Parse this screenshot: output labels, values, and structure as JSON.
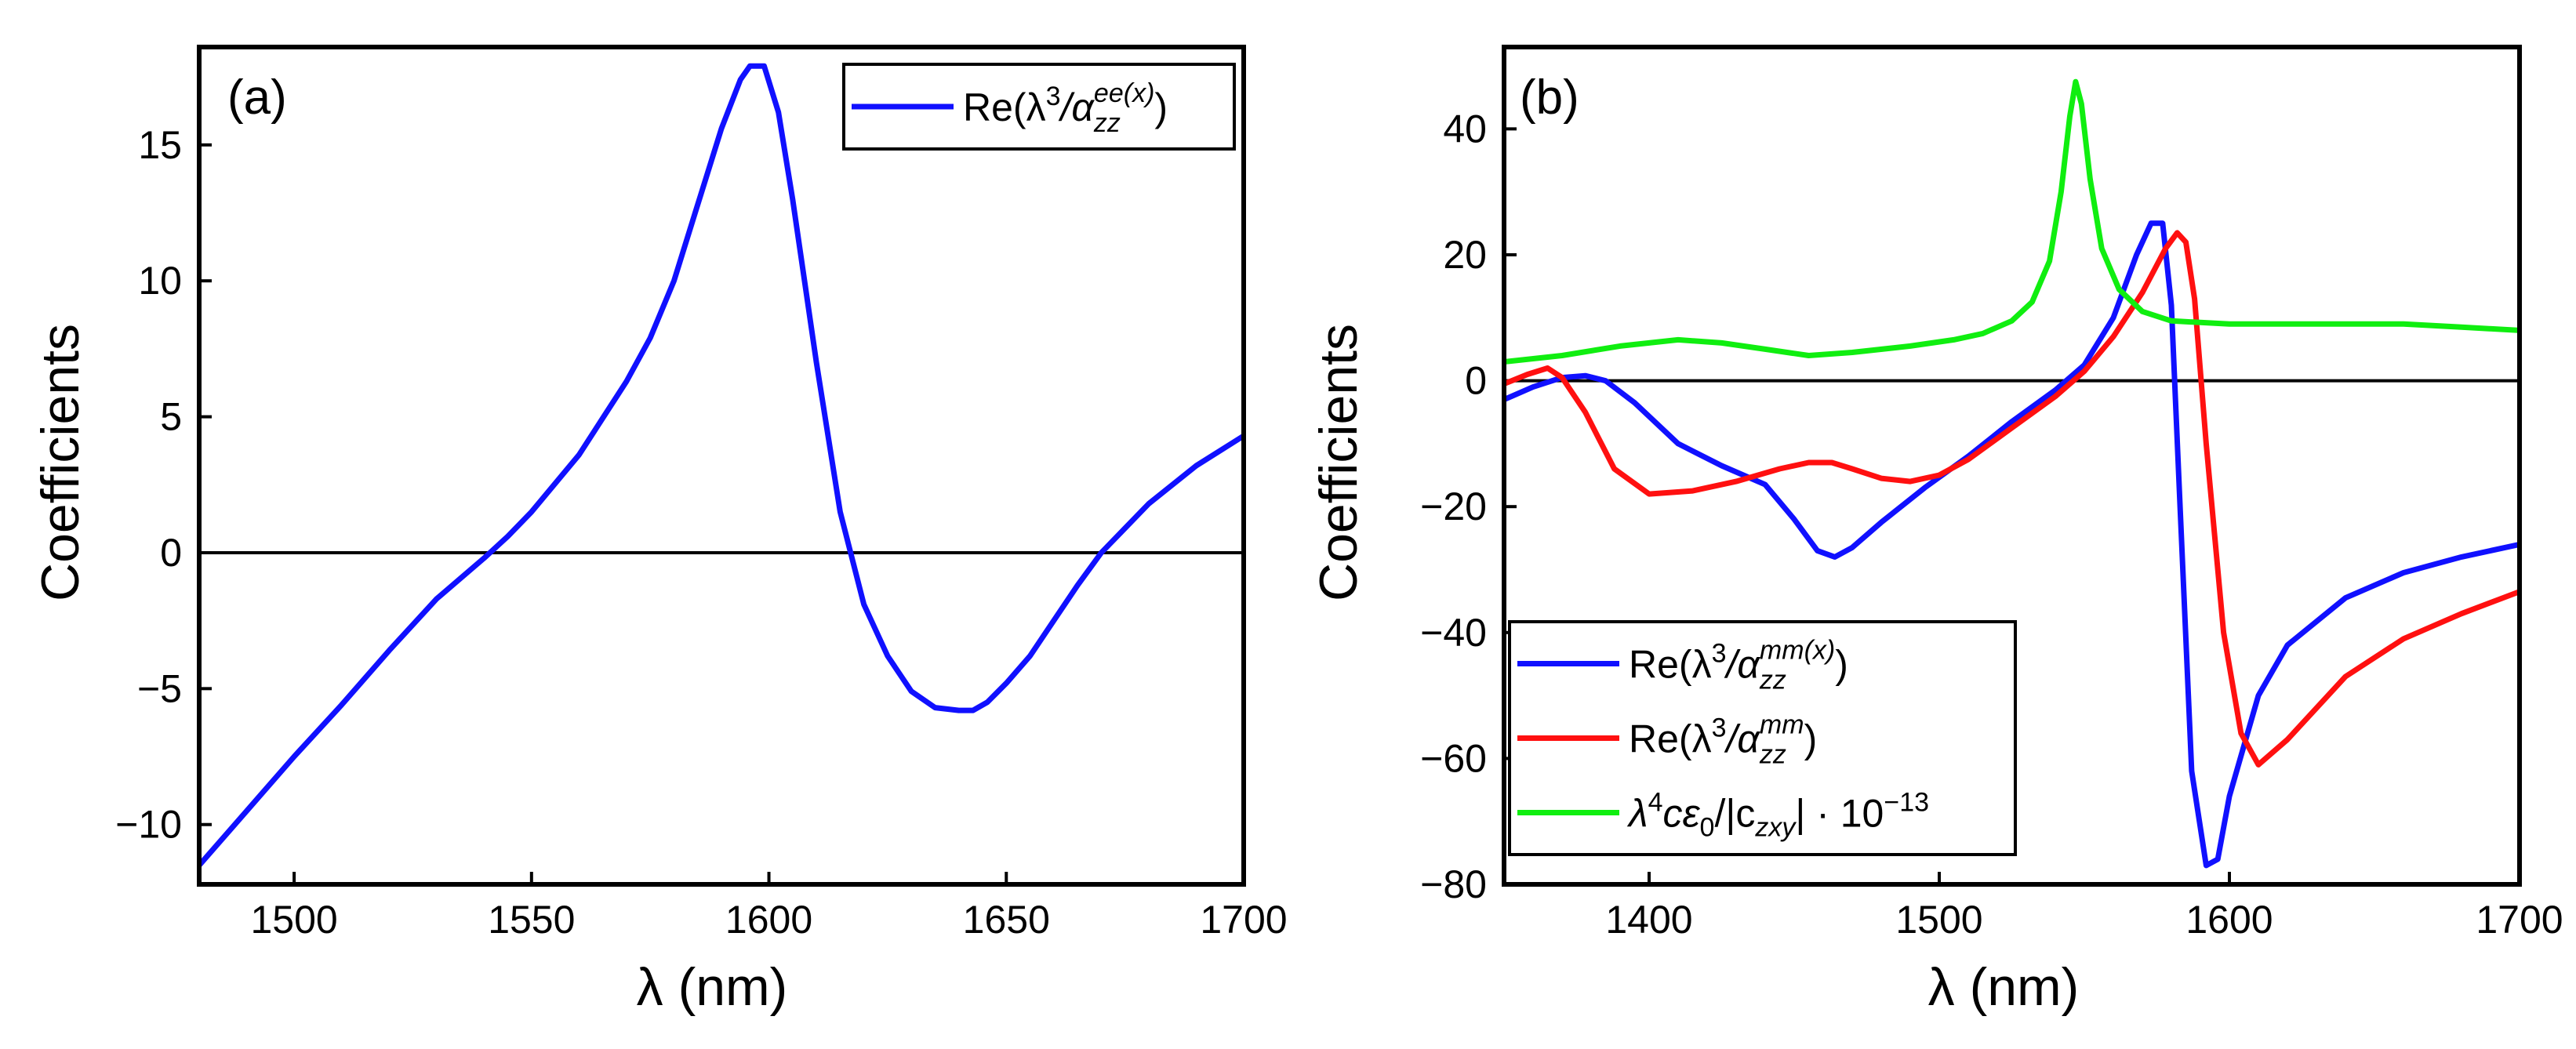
{
  "chart_data": [
    {
      "type": "line",
      "panel_label": "(a)",
      "xlabel": "λ (nm)",
      "ylabel": "Coefficients",
      "xlim": [
        1480,
        1700
      ],
      "ylim": [
        -12.2,
        18.6
      ],
      "xticks": [
        1500,
        1550,
        1600,
        1650,
        1700
      ],
      "yticks": [
        -10,
        -5,
        0,
        5,
        10,
        15
      ],
      "ytick_labels": [
        "−10",
        "−5",
        "0",
        "5",
        "10",
        "15"
      ],
      "zero_line": true,
      "legend_position": "top-right",
      "series": [
        {
          "name": "Re(λ3/αzzee(x))",
          "color": "#1010ff",
          "legend": {
            "main": "Re(λ",
            "sup1": "3",
            "slash": "/α",
            "sub": "zz",
            "sup2": "ee(x)",
            "close": ")"
          },
          "x": [
            1480,
            1490,
            1500,
            1510,
            1520,
            1530,
            1540,
            1545,
            1550,
            1560,
            1570,
            1575,
            1580,
            1585,
            1590,
            1594,
            1596,
            1599,
            1602,
            1605,
            1610,
            1615,
            1620,
            1625,
            1630,
            1635,
            1640,
            1643,
            1646,
            1650,
            1655,
            1660,
            1665,
            1670,
            1675,
            1680,
            1690,
            1700
          ],
          "y": [
            -11.5,
            -9.5,
            -7.5,
            -5.6,
            -3.6,
            -1.7,
            -0.2,
            0.6,
            1.5,
            3.6,
            6.3,
            7.9,
            10.0,
            12.8,
            15.6,
            17.4,
            17.9,
            17.9,
            16.2,
            13.0,
            7.0,
            1.5,
            -1.9,
            -3.8,
            -5.1,
            -5.7,
            -5.8,
            -5.8,
            -5.5,
            -4.8,
            -3.8,
            -2.5,
            -1.2,
            0.0,
            0.9,
            1.8,
            3.2,
            4.3
          ]
        }
      ]
    },
    {
      "type": "line",
      "panel_label": "(b)",
      "xlabel": "λ (nm)",
      "ylabel": "Coefficients",
      "xlim": [
        1350,
        1700
      ],
      "ylim": [
        -80,
        53
      ],
      "xticks": [
        1400,
        1500,
        1600,
        1700
      ],
      "yticks": [
        -80,
        -60,
        -40,
        -20,
        0,
        20,
        40
      ],
      "ytick_labels": [
        "−80",
        "−60",
        "−40",
        "−20",
        "0",
        "20",
        "40"
      ],
      "zero_line": true,
      "legend_position": "bottom-left",
      "series": [
        {
          "name": "Re(λ3/αzzmm(x))",
          "color": "#1010ff",
          "legend": {
            "main": "Re(λ",
            "sup1": "3",
            "slash": "/α",
            "sub": "zz",
            "sup2": "mm(x)",
            "close": ")"
          },
          "x": [
            1350,
            1360,
            1370,
            1378,
            1385,
            1395,
            1410,
            1425,
            1440,
            1450,
            1458,
            1464,
            1470,
            1480,
            1495,
            1510,
            1525,
            1540,
            1550,
            1560,
            1568,
            1573,
            1577,
            1580,
            1583,
            1587,
            1592,
            1596,
            1600,
            1610,
            1620,
            1640,
            1660,
            1680,
            1700
          ],
          "y": [
            -3,
            -1,
            0.5,
            0.8,
            0,
            -3.5,
            -10,
            -13.5,
            -16.5,
            -22,
            -27,
            -28,
            -26.5,
            -22.5,
            -17,
            -12,
            -6.5,
            -1.5,
            2.5,
            10,
            20,
            25,
            25,
            12,
            -20,
            -62,
            -77,
            -76,
            -66,
            -50,
            -42,
            -34.5,
            -30.5,
            -28,
            -26
          ]
        },
        {
          "name": "Re(λ3/αzzmm)",
          "color": "#ff1010",
          "legend": {
            "main": "Re(λ",
            "sup1": "3",
            "slash": "/α",
            "sub": "zz",
            "sup2": "mm",
            "close": ")"
          },
          "x": [
            1350,
            1358,
            1365,
            1370,
            1378,
            1388,
            1400,
            1415,
            1430,
            1445,
            1455,
            1463,
            1470,
            1480,
            1490,
            1500,
            1510,
            1525,
            1540,
            1550,
            1560,
            1570,
            1578,
            1582,
            1585,
            1588,
            1592,
            1598,
            1604,
            1610,
            1620,
            1640,
            1660,
            1680,
            1700
          ],
          "y": [
            -0.5,
            1,
            2,
            0.5,
            -5,
            -14,
            -18,
            -17.5,
            -16,
            -14,
            -13,
            -13,
            -14,
            -15.5,
            -16,
            -15,
            -12.5,
            -7.5,
            -2.5,
            1.5,
            7,
            14,
            21,
            23.5,
            22,
            13,
            -10,
            -40,
            -56,
            -61,
            -57,
            -47,
            -41,
            -37,
            -33.5
          ]
        },
        {
          "name": "λ4cε0/|czxy|·10−13",
          "color": "#10ee10",
          "legend": {
            "main": "λ",
            "sup1": "4",
            "mid": "cε",
            "sub1": "0",
            "abs_open": "/|c",
            "sub2": "zxy",
            "abs_close": "| · 10",
            "sup2": "−13"
          },
          "x": [
            1350,
            1370,
            1390,
            1410,
            1425,
            1440,
            1455,
            1470,
            1490,
            1505,
            1515,
            1525,
            1532,
            1538,
            1542,
            1545,
            1547,
            1549,
            1552,
            1556,
            1562,
            1570,
            1580,
            1600,
            1630,
            1660,
            1680,
            1700
          ],
          "y": [
            3,
            4,
            5.5,
            6.5,
            6,
            5,
            4,
            4.5,
            5.5,
            6.5,
            7.5,
            9.5,
            12.5,
            19,
            30,
            42,
            47.5,
            44,
            32,
            21,
            14.5,
            11,
            9.5,
            9,
            9,
            9,
            8.5,
            8
          ]
        }
      ]
    }
  ]
}
